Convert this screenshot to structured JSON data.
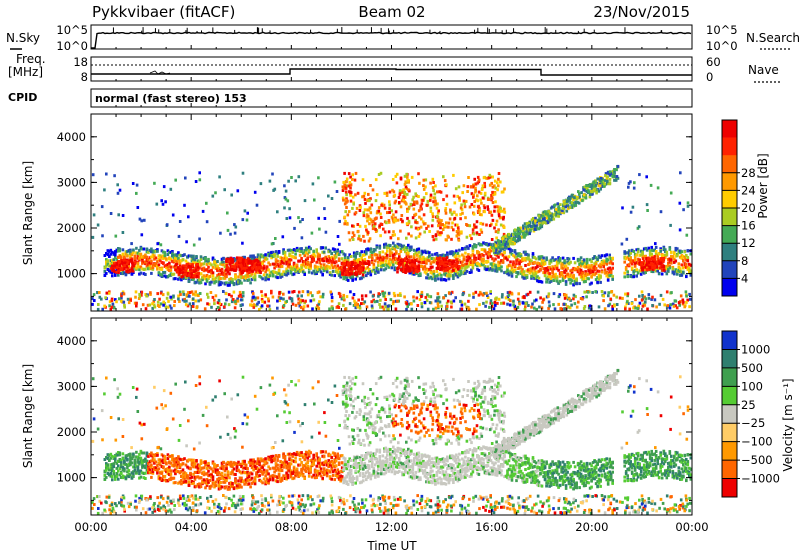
{
  "header": {
    "radar": "Pykkvibaer (fitACF)",
    "beam": "Beam 02",
    "date": "23/Nov/2015"
  },
  "top_panels": {
    "nsky": {
      "label": "N.Sky",
      "tick_top": "10^5",
      "tick_bottom": "10^0",
      "right_label": "N.Search",
      "right_tick_top": "10^5",
      "right_tick_bottom": "10^0"
    },
    "freq": {
      "label_line1": "Freq.",
      "label_line2": "[MHz]",
      "tick_top": "18",
      "tick_bottom": "8",
      "right_label": "Nave",
      "right_tick_top": "60",
      "right_tick_bottom": "0"
    },
    "cpid": {
      "label": "CPID",
      "text": "normal (fast stereo) 153"
    }
  },
  "chart_data": [
    {
      "type": "heatmap",
      "name": "power",
      "ylabel": "Slant Range [km]",
      "xlabel": "",
      "ylim": [
        180,
        4500
      ],
      "yticks": [
        "1000",
        "2000",
        "3000",
        "4000"
      ],
      "x_range_hours": [
        0,
        24
      ],
      "colorbar": {
        "label": "Power [dB]",
        "ticks": [
          "4",
          "8",
          "12",
          "16",
          "20",
          "24",
          "28"
        ],
        "colors": [
          "#0000ee",
          "#2244bb",
          "#2f7f7f",
          "#44aa55",
          "#aacc22",
          "#ffcc00",
          "#ff9900",
          "#ff6600",
          "#ff2200",
          "#ee0000"
        ]
      }
    },
    {
      "type": "heatmap",
      "name": "velocity",
      "ylabel": "Slant Range [km]",
      "xlabel": "Time UT",
      "ylim": [
        180,
        4500
      ],
      "yticks": [
        "1000",
        "2000",
        "3000",
        "4000"
      ],
      "x_range_hours": [
        0,
        24
      ],
      "xticks": [
        "00:00",
        "04:00",
        "08:00",
        "12:00",
        "16:00",
        "20:00",
        "00:00"
      ],
      "colorbar": {
        "label": "Velocity [m s⁻¹]",
        "ticks": [
          "1000",
          "500",
          "100",
          "25",
          "−25",
          "−100",
          "−500",
          "−1000"
        ],
        "colors": [
          "#1133cc",
          "#2f7f6f",
          "#3f9f4f",
          "#55cc33",
          "#c8c8c0",
          "#ffcc66",
          "#ff9900",
          "#ff6600",
          "#ee0000"
        ]
      }
    }
  ]
}
